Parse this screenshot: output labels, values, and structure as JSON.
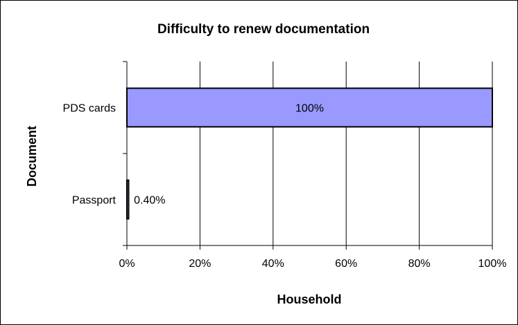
{
  "chart_data": {
    "type": "bar",
    "orientation": "horizontal",
    "title": "Difficulty to renew documentation",
    "xlabel": "Household",
    "ylabel": "Document",
    "categories": [
      "PDS cards",
      "Passport"
    ],
    "values": [
      100,
      0.4
    ],
    "data_labels": [
      "100%",
      "0.40%"
    ],
    "xlim": [
      0,
      100
    ],
    "x_ticks": [
      "0%",
      "20%",
      "40%",
      "60%",
      "80%",
      "100%"
    ],
    "grid": "vertical",
    "legend": "none",
    "bar_color": "#9999FF",
    "bar_border": "#000000"
  }
}
